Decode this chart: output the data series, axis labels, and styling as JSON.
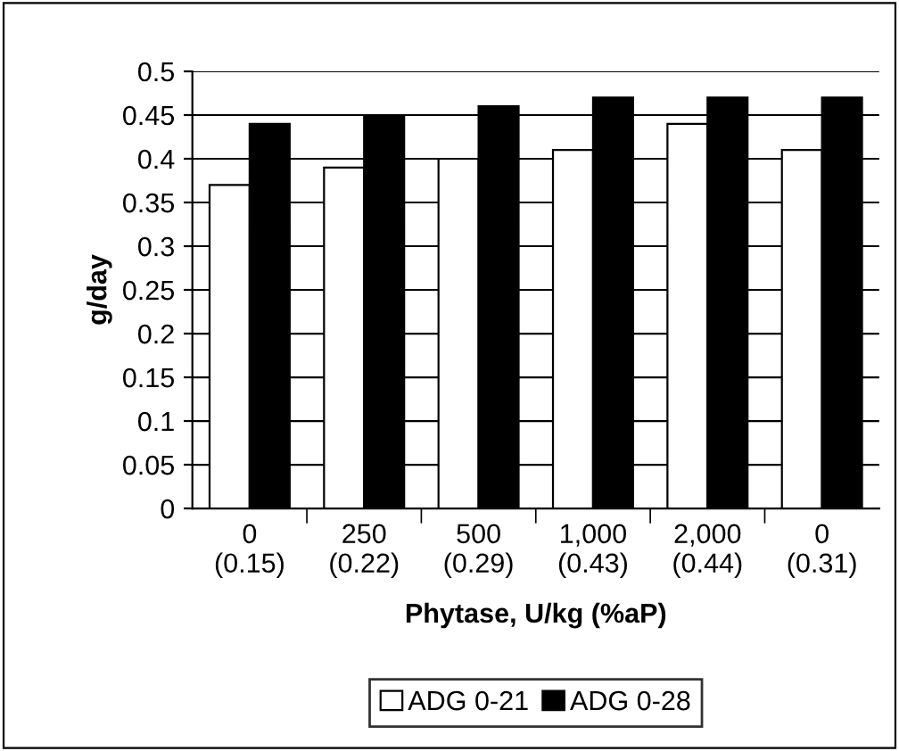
{
  "chart_data": {
    "type": "bar",
    "categories": [
      "0\n(0.15)",
      "250\n(0.22)",
      "500\n(0.29)",
      "1,000\n(0.43)",
      "2,000\n(0.44)",
      "0\n(0.31)"
    ],
    "series": [
      {
        "name": "ADG 0-21",
        "color": "#ffffff",
        "values": [
          0.37,
          0.39,
          0.4,
          0.41,
          0.44,
          0.41
        ]
      },
      {
        "name": "ADG 0-28",
        "color": "#000000",
        "values": [
          0.44,
          0.45,
          0.46,
          0.47,
          0.47,
          0.47
        ]
      }
    ],
    "xlabel": "Phytase, U/kg (%aP)",
    "ylabel": "g/day",
    "ylim": [
      0,
      0.5
    ],
    "yticks": [
      0,
      0.05,
      0.1,
      0.15,
      0.2,
      0.25,
      0.3,
      0.35,
      0.4,
      0.45,
      0.5
    ],
    "grid": "y",
    "legend": "bottom"
  }
}
